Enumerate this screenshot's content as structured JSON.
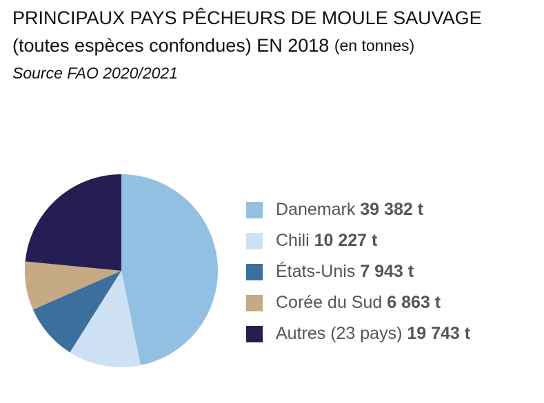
{
  "chart_data": {
    "type": "pie",
    "title": [
      "PRINCIPAUX PAYS PÊCHEURS DE MOULE SAUVAGE",
      "(toutes espèces confondues) EN 2018",
      "(en tonnes)"
    ],
    "subtitle": "Source FAO 2020/2021",
    "categories": [
      "Danemark",
      "Chili",
      "États-Unis",
      "Corée du Sud",
      "Autres (23 pays)"
    ],
    "values": [
      39382,
      10227,
      7943,
      6863,
      19743
    ],
    "value_labels": [
      "39 382 t",
      "10 227 t",
      "7 943 t",
      "6 863 t",
      "19 743 t"
    ],
    "colors": [
      "#92c0e3",
      "#cde0f4",
      "#3a6f9e",
      "#c6aa84",
      "#251e52"
    ],
    "legend": "right"
  }
}
